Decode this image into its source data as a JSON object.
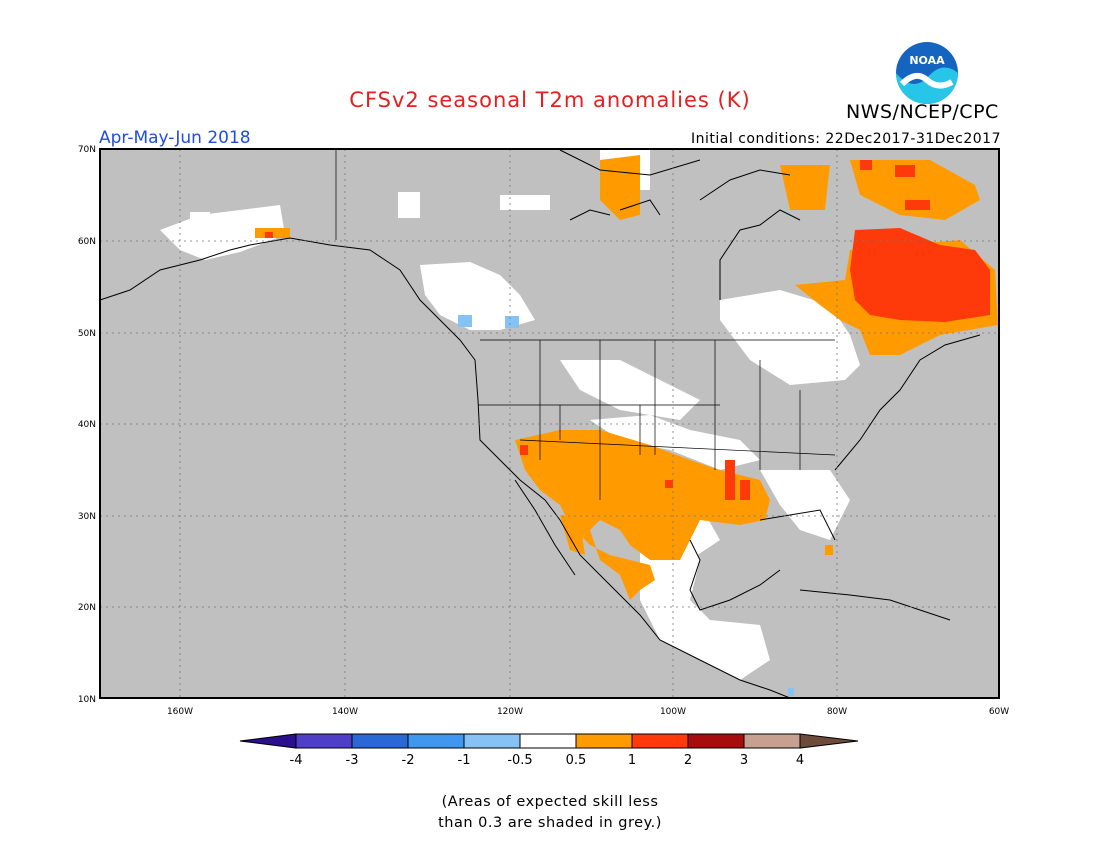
{
  "title": "CFSv2 seasonal T2m anomalies (K)",
  "organization": "NWS/NCEP/CPC",
  "logo_text": "NOAA",
  "season_label": "Apr-May-Jun 2018",
  "initial_conditions": "Initial conditions: 22Dec2017-31Dec2017",
  "lat_labels": [
    "70N",
    "60N",
    "50N",
    "40N",
    "30N",
    "20N",
    "10N"
  ],
  "lon_labels": [
    "160W",
    "140W",
    "120W",
    "100W",
    "80W",
    "60W"
  ],
  "colorbar": {
    "ticks": [
      "-4",
      "-3",
      "-2",
      "-1",
      "-0.5",
      "0.5",
      "1",
      "2",
      "3",
      "4"
    ],
    "colors": [
      "#2a0f8f",
      "#4f3ec8",
      "#2a68d6",
      "#3f97ef",
      "#86c2f4",
      "#ffffff",
      "#ff9b00",
      "#ff3a0a",
      "#a80d0d",
      "#c8a090",
      "#6e4a3a"
    ]
  },
  "note_line1": "(Areas of expected skill less",
  "note_line2": "than 0.3 are shaded in grey.)",
  "colors": {
    "ocean_skill_grey": "#c0c0c0",
    "title_red": "#e61e1e",
    "season_blue": "#1f4de0"
  }
}
